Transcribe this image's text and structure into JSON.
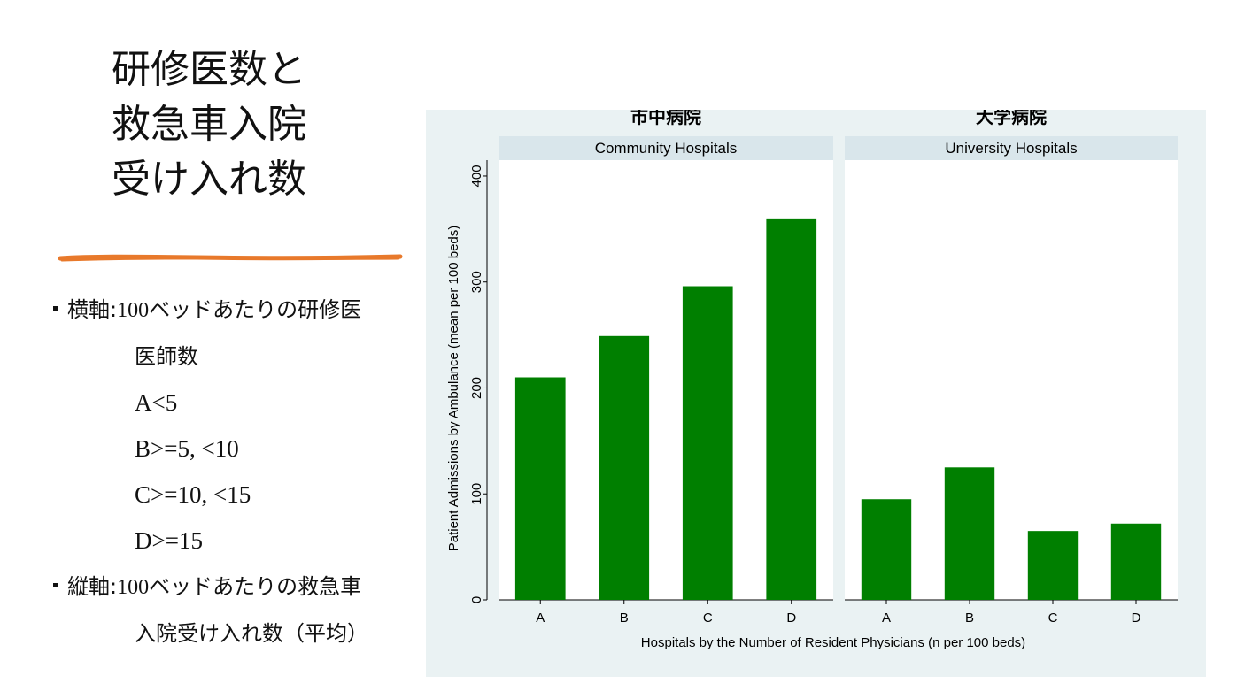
{
  "slide": {
    "title_lines": [
      "研修医数と",
      "救急車入院",
      "受け入れ数"
    ],
    "accent_color": "#e8792b",
    "bullets": {
      "x_axis": {
        "label": "横軸",
        "sep": ":",
        "num": "100",
        "text": "ベッドあたりの研修医",
        "cont": "医師数",
        "categories": [
          "A<5",
          "B>=5, <10",
          "C>=10, <15",
          "D>=15"
        ]
      },
      "y_axis": {
        "label": "縦軸",
        "sep": ":",
        "num": "100",
        "text": "ベッドあたりの救急車",
        "cont": "入院受け入れ数（平均）"
      }
    }
  },
  "chart_data": {
    "type": "bar",
    "panel_titles": [
      "市中病院",
      "大学病院"
    ],
    "facets": [
      "Community Hospitals",
      "University Hospitals"
    ],
    "categories": [
      "A",
      "B",
      "C",
      "D"
    ],
    "series": [
      {
        "facet": "Community Hospitals",
        "values": [
          210,
          249,
          296,
          360
        ]
      },
      {
        "facet": "University Hospitals",
        "values": [
          95,
          125,
          65,
          72
        ]
      }
    ],
    "xlabel": "Hospitals by the Number of Resident Physicians (n per 100 beds)",
    "ylabel": "Patient Admissions by Ambulance (mean per 100 beds)",
    "yticks": [
      0,
      100,
      200,
      300,
      400
    ],
    "ylim": [
      0,
      415
    ],
    "bar_color": "#007f00",
    "background": "#eaf2f3",
    "strip_color": "#d9e6eb",
    "grid": false
  }
}
